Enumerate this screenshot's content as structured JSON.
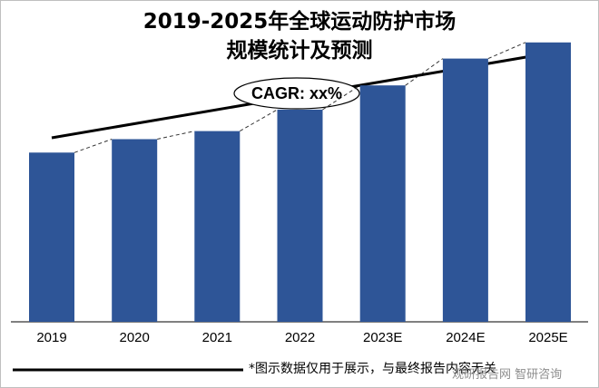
{
  "chart_data": {
    "type": "bar",
    "title_line1": "2019-2025年全球运动防护市场",
    "title_line2": "规模统计及预测",
    "categories": [
      "2019",
      "2020",
      "2021",
      "2022",
      "2023E",
      "2024E",
      "2025E"
    ],
    "values": [
      63,
      68,
      71,
      79,
      88,
      98,
      104
    ],
    "ylim": [
      0,
      110
    ],
    "annotation": "CAGR: xx%",
    "bar_color": "#2e5597",
    "grid": false,
    "legend": "none"
  },
  "footnote": "*图示数据仅用于展示，与最终报告内容无关",
  "watermark": "观研报告网 智研咨询"
}
